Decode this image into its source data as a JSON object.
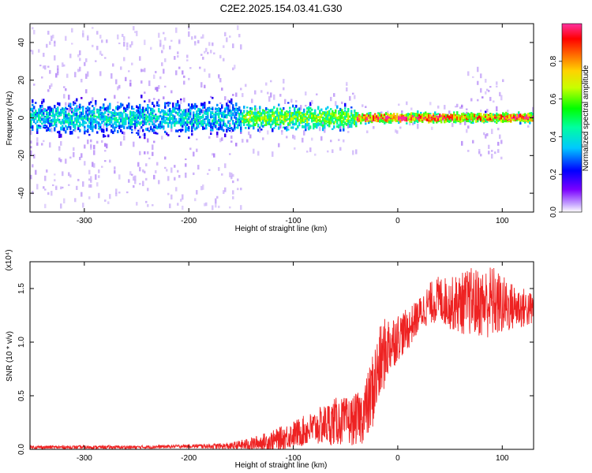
{
  "title": "C2E2.2025.154.03.41.G30",
  "colors": {
    "snr_line": "#ee2222",
    "frame": "#000000",
    "spectrogram_core": "#6a00e0"
  },
  "chart_data": [
    {
      "type": "heatmap",
      "name": "spectrogram",
      "xlabel": "Height of straight line (km)",
      "ylabel": "Frequency (Hz)",
      "xlim": [
        -352,
        130
      ],
      "ylim": [
        -50,
        50
      ],
      "xticks": [
        -300,
        -200,
        -100,
        0,
        100
      ],
      "xtick_labels": [
        "-300",
        "-200",
        "-100",
        "0",
        "100"
      ],
      "yticks": [
        -40,
        -20,
        0,
        20,
        40
      ],
      "ytick_labels": [
        "-40",
        "-20",
        "0",
        "20",
        "40"
      ],
      "grid": false,
      "colorbar": {
        "label": "Normalized spectral amplitude",
        "range": [
          0,
          1
        ],
        "ticks": [
          0.0,
          0.2,
          0.4,
          0.6,
          0.8
        ],
        "tick_labels": [
          "0.0",
          "0.2",
          "0.4",
          "0.6",
          "0.8"
        ],
        "colormap": "purple-blue-cyan-green-yellow-orange-red-magenta"
      },
      "features": [
        {
          "x_range": [
            -352,
            -150
          ],
          "freq_spread": 48,
          "core_halfwidth": 7,
          "peak_amplitude": 0.35
        },
        {
          "x_range": [
            -150,
            -40
          ],
          "freq_spread": 20,
          "core_halfwidth": 5,
          "peak_amplitude": 0.55
        },
        {
          "x_range": [
            -40,
            58
          ],
          "freq_spread": 8,
          "core_halfwidth": 2,
          "peak_amplitude": 0.9
        },
        {
          "x_range": [
            58,
            100
          ],
          "freq_spread": 28,
          "core_halfwidth": 2,
          "peak_amplitude": 0.8
        },
        {
          "x_range": [
            100,
            130
          ],
          "freq_spread": 5,
          "core_halfwidth": 2,
          "peak_amplitude": 0.9
        }
      ]
    },
    {
      "type": "line",
      "name": "snr",
      "xlabel": "Height of straight line (km)",
      "ylabel": "SNR (10 * v/v)",
      "scale_label": "(x10⁴)",
      "xlim": [
        -352,
        130
      ],
      "ylim": [
        0,
        1.75
      ],
      "xticks": [
        -300,
        -200,
        -100,
        0,
        100
      ],
      "xtick_labels": [
        "-300",
        "-200",
        "-100",
        "0",
        "100"
      ],
      "yticks": [
        0.0,
        0.5,
        1.0,
        1.5
      ],
      "ytick_labels": [
        "0.0",
        "0.5",
        "1.0",
        "1.5"
      ],
      "grid": false,
      "series": [
        {
          "x": [
            -352,
            -300,
            -250,
            -200,
            -160,
            -140,
            -120,
            -100,
            -80,
            -60,
            -45,
            -35,
            -28,
            -22,
            -15,
            -8,
            0,
            10,
            20,
            30,
            40,
            50,
            60,
            70,
            80,
            90,
            100,
            110,
            120,
            130
          ],
          "y": [
            0.02,
            0.02,
            0.02,
            0.03,
            0.03,
            0.05,
            0.08,
            0.14,
            0.2,
            0.26,
            0.26,
            0.3,
            0.42,
            0.62,
            0.85,
            0.98,
            1.05,
            1.12,
            1.25,
            1.36,
            1.4,
            1.36,
            1.36,
            1.38,
            1.36,
            1.38,
            1.34,
            1.33,
            1.32,
            1.3
          ],
          "noise": [
            0.01,
            0.01,
            0.01,
            0.01,
            0.02,
            0.04,
            0.06,
            0.08,
            0.1,
            0.14,
            0.14,
            0.16,
            0.2,
            0.24,
            0.22,
            0.18,
            0.14,
            0.12,
            0.1,
            0.12,
            0.14,
            0.15,
            0.18,
            0.2,
            0.2,
            0.22,
            0.18,
            0.14,
            0.12,
            0.1
          ]
        }
      ]
    }
  ]
}
